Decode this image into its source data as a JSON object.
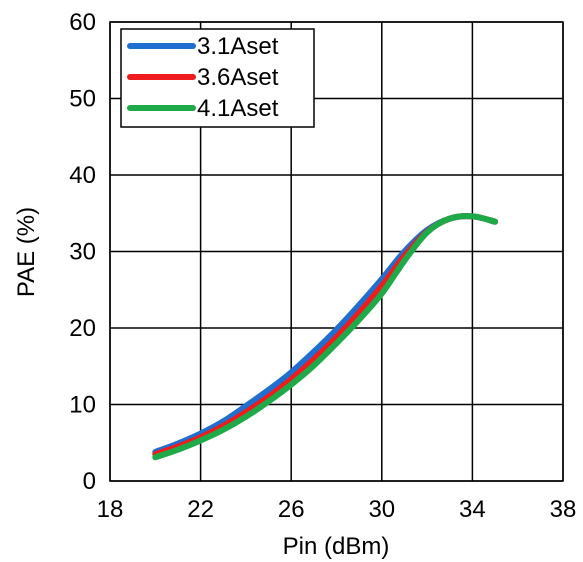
{
  "chart_data": {
    "type": "line",
    "title": "",
    "xlabel": "Pin (dBm)",
    "ylabel": "PAE (%)",
    "xlim": [
      18,
      38
    ],
    "ylim": [
      0,
      60
    ],
    "xticks": [
      18,
      22,
      26,
      30,
      34,
      38
    ],
    "yticks": [
      0,
      10,
      20,
      30,
      40,
      50,
      60
    ],
    "grid": true,
    "legend_position": "top-left",
    "series": [
      {
        "name": "3.1Aset",
        "color": "#1f6fd1",
        "x": [
          20,
          21,
          22,
          23,
          24,
          25,
          26,
          27,
          28,
          29,
          30,
          31,
          32,
          33,
          34,
          35
        ],
        "y": [
          3.8,
          4.9,
          6.2,
          7.8,
          9.8,
          11.9,
          14.2,
          16.9,
          19.8,
          23.0,
          26.4,
          30.0,
          32.8,
          34.3,
          34.6,
          33.9
        ]
      },
      {
        "name": "3.6Aset",
        "color": "#ee1c1c",
        "x": [
          20,
          21,
          22,
          23,
          24,
          25,
          26,
          27,
          28,
          29,
          30,
          31,
          32,
          33,
          34,
          35
        ],
        "y": [
          3.5,
          4.5,
          5.7,
          7.2,
          9.0,
          11.0,
          13.3,
          15.9,
          18.8,
          22.0,
          25.5,
          29.4,
          32.6,
          34.3,
          34.6,
          33.9
        ]
      },
      {
        "name": "4.1Aset",
        "color": "#1faa4a",
        "x": [
          20,
          21,
          22,
          23,
          24,
          25,
          26,
          27,
          28,
          29,
          30,
          31,
          32,
          33,
          34,
          35
        ],
        "y": [
          3.1,
          4.1,
          5.3,
          6.7,
          8.4,
          10.4,
          12.6,
          15.1,
          18.0,
          21.1,
          24.5,
          28.8,
          32.5,
          34.3,
          34.6,
          33.9
        ]
      }
    ]
  }
}
